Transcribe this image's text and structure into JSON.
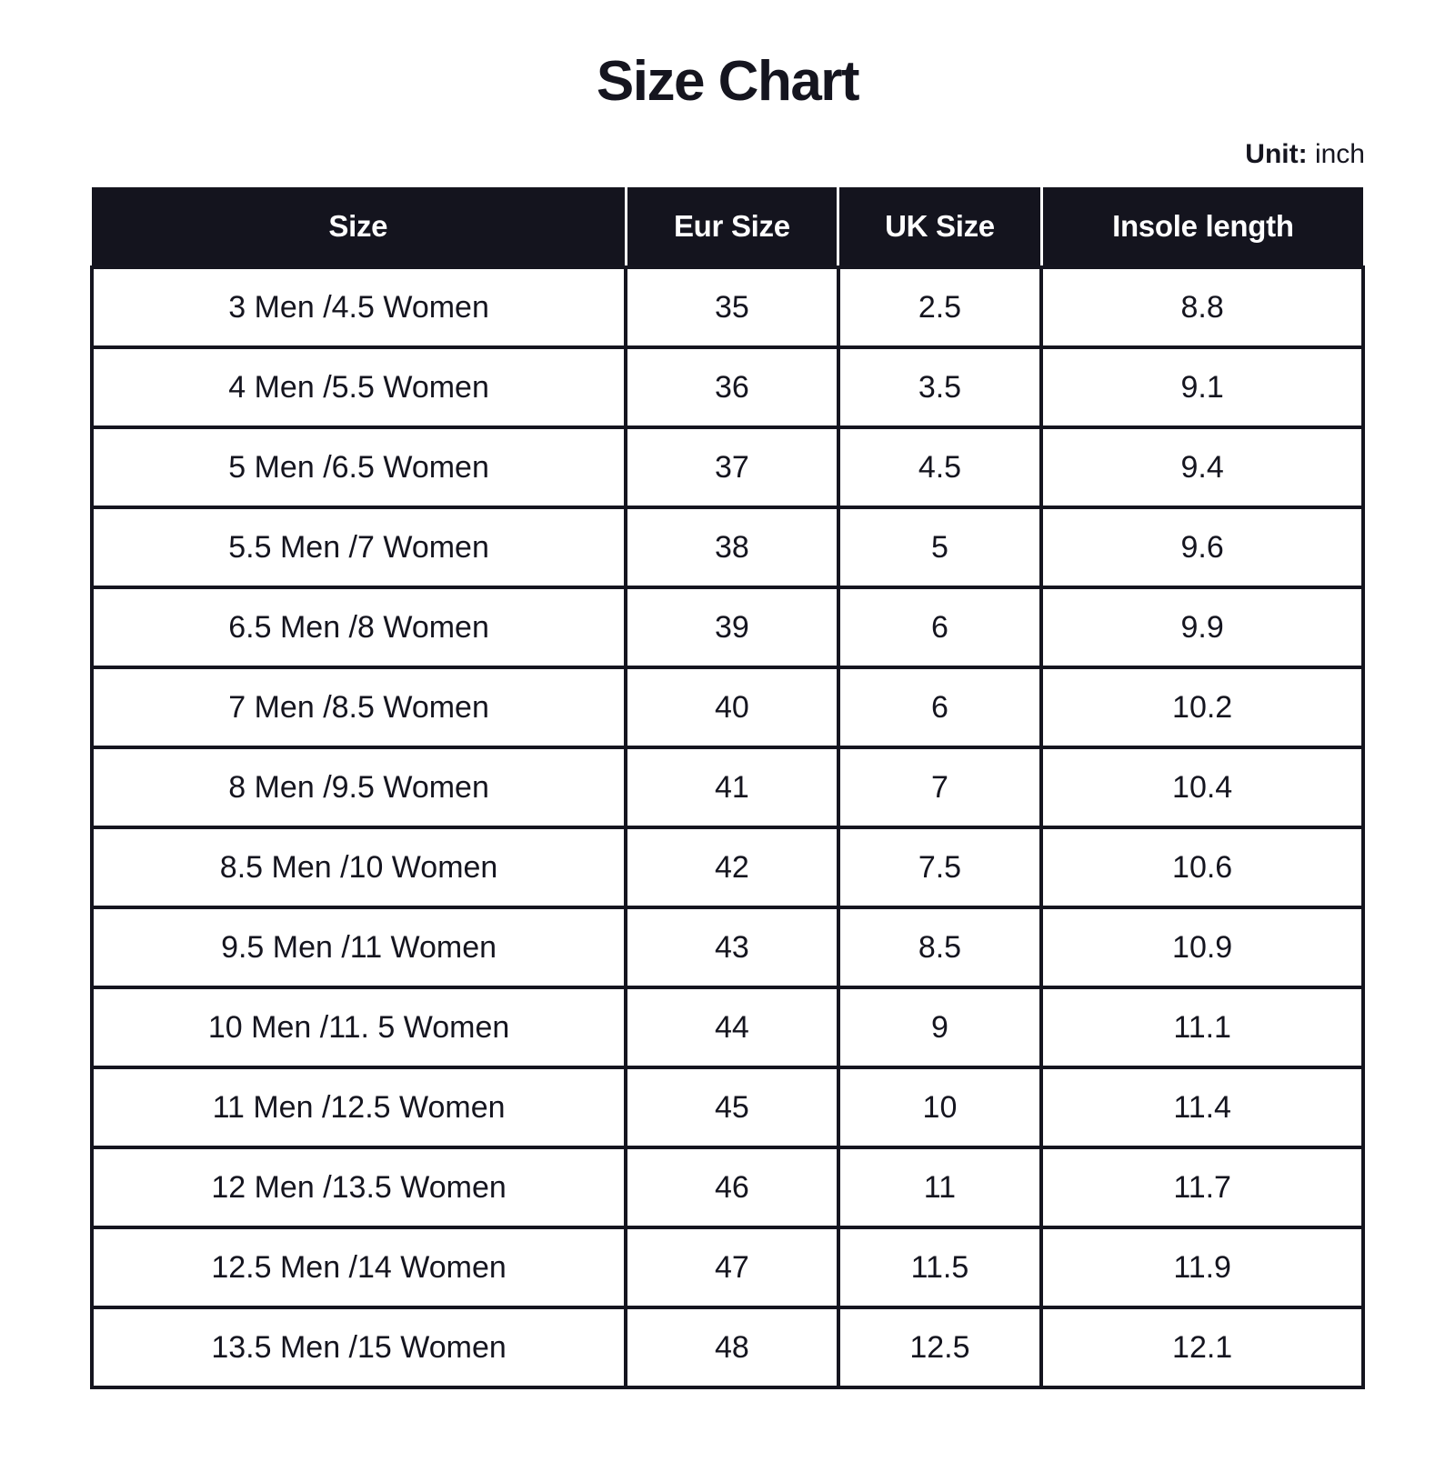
{
  "page": {
    "title": "Size Chart",
    "unit_label": "Unit:",
    "unit_value": "inch"
  },
  "colors": {
    "header_bg": "#14141e",
    "header_text": "#ffffff",
    "body_text": "#15151f",
    "border": "#15151f",
    "background": "#ffffff"
  },
  "chart_data": {
    "type": "table",
    "title": "Size Chart",
    "unit": "inch",
    "columns": [
      "Size",
      "Eur Size",
      "UK Size",
      "Insole length"
    ],
    "rows": [
      {
        "size": "3 Men /4.5 Women",
        "eur_size": "35",
        "uk_size": "2.5",
        "insole_length": "8.8"
      },
      {
        "size": "4 Men /5.5 Women",
        "eur_size": "36",
        "uk_size": "3.5",
        "insole_length": "9.1"
      },
      {
        "size": "5 Men /6.5 Women",
        "eur_size": "37",
        "uk_size": "4.5",
        "insole_length": "9.4"
      },
      {
        "size": "5.5 Men /7 Women",
        "eur_size": "38",
        "uk_size": "5",
        "insole_length": "9.6"
      },
      {
        "size": "6.5 Men /8 Women",
        "eur_size": "39",
        "uk_size": "6",
        "insole_length": "9.9"
      },
      {
        "size": "7 Men /8.5 Women",
        "eur_size": "40",
        "uk_size": "6",
        "insole_length": "10.2"
      },
      {
        "size": "8 Men /9.5 Women",
        "eur_size": "41",
        "uk_size": "7",
        "insole_length": "10.4"
      },
      {
        "size": "8.5 Men /10 Women",
        "eur_size": "42",
        "uk_size": "7.5",
        "insole_length": "10.6"
      },
      {
        "size": "9.5 Men /11 Women",
        "eur_size": "43",
        "uk_size": "8.5",
        "insole_length": "10.9"
      },
      {
        "size": "10 Men /11. 5 Women",
        "eur_size": "44",
        "uk_size": "9",
        "insole_length": "11.1"
      },
      {
        "size": "11 Men /12.5 Women",
        "eur_size": "45",
        "uk_size": "10",
        "insole_length": "11.4"
      },
      {
        "size": "12 Men /13.5 Women",
        "eur_size": "46",
        "uk_size": "11",
        "insole_length": "11.7"
      },
      {
        "size": "12.5 Men /14 Women",
        "eur_size": "47",
        "uk_size": "11.5",
        "insole_length": "11.9"
      },
      {
        "size": "13.5 Men /15 Women",
        "eur_size": "48",
        "uk_size": "12.5",
        "insole_length": "12.1"
      }
    ]
  }
}
